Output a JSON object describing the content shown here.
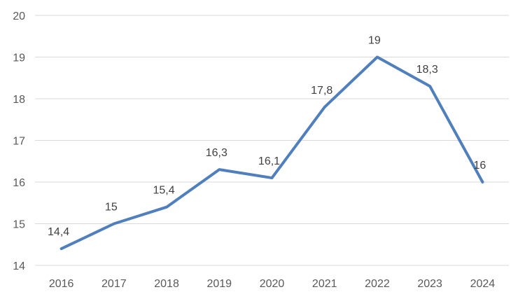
{
  "chart_data": {
    "type": "line",
    "title": "",
    "xlabel": "",
    "ylabel": "",
    "categories": [
      "2016",
      "2017",
      "2018",
      "2019",
      "2020",
      "2021",
      "2022",
      "2023",
      "2024"
    ],
    "series": [
      {
        "values": [
          14.4,
          15,
          15.4,
          16.3,
          16.1,
          17.8,
          19,
          18.3,
          16
        ],
        "data_labels": [
          "14,4",
          "15",
          "15,4",
          "16,3",
          "16,1",
          "17,8",
          "19",
          "18,3",
          "16"
        ]
      }
    ],
    "ylim": [
      14,
      20
    ],
    "yticks": [
      14,
      15,
      16,
      17,
      18,
      19,
      20
    ],
    "grid": true,
    "legend": "none",
    "colors": {
      "series": "#4f7fbc",
      "grid": "#d9d9d9",
      "tick_text": "#595959",
      "label_text": "#404040"
    }
  }
}
